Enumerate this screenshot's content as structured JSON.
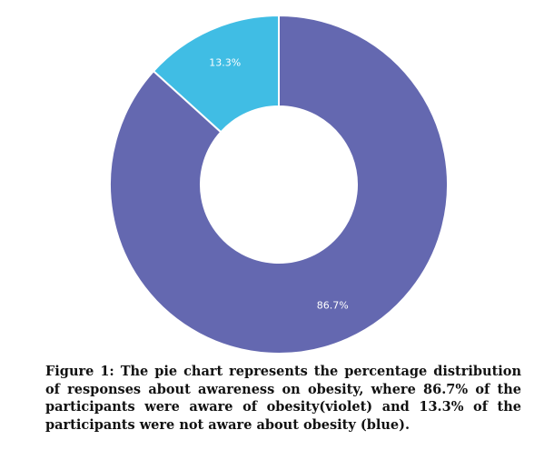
{
  "caption": "Figure 1: The pie chart represents the percentage distribution of responses about awareness on obesity, where 86.7% of the participants were aware of obesity(violet) and 13.3% of the participants were not aware about obesity (blue).",
  "chart_data": {
    "type": "pie",
    "donut": true,
    "categories": [
      "aware of obesity",
      "not aware about obesity"
    ],
    "values": [
      86.7,
      13.3
    ],
    "labels": [
      "86.7%",
      "13.3%"
    ],
    "colors": [
      "#6468b0",
      "#40bde4"
    ],
    "start_slice": 1,
    "legend": "none",
    "title": ""
  }
}
